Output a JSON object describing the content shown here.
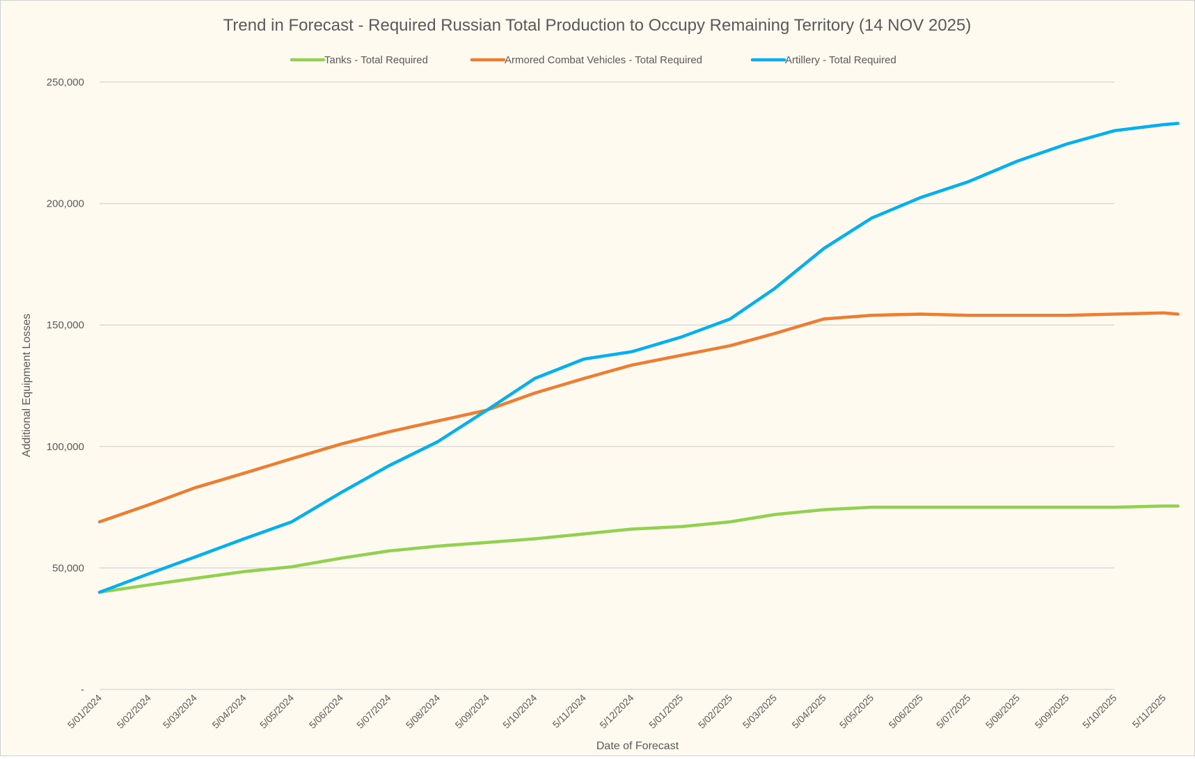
{
  "chart_data": {
    "type": "line",
    "title": "Trend in Forecast - Required Russian Total Production to Occupy Remaining Territory (14 NOV 2025)",
    "xlabel": "Date of Forecast",
    "ylabel": "Additional Equipment Losses",
    "ylim": [
      0,
      250000
    ],
    "yticks": [
      "-",
      "50,000",
      "100,000",
      "150,000",
      "200,000",
      "250,000"
    ],
    "ytick_values": [
      0,
      50000,
      100000,
      150000,
      200000,
      250000
    ],
    "xticks": [
      "5/01/2024",
      "5/02/2024",
      "5/03/2024",
      "5/04/2024",
      "5/05/2024",
      "5/06/2024",
      "5/07/2024",
      "5/08/2024",
      "5/09/2024",
      "5/10/2024",
      "5/11/2024",
      "5/12/2024",
      "5/01/2025",
      "5/02/2025",
      "5/03/2025",
      "5/04/2025",
      "5/05/2025",
      "5/06/2025",
      "5/07/2025",
      "5/08/2025",
      "5/09/2025",
      "5/10/2025",
      "5/11/2025"
    ],
    "grid": "horizontal",
    "legend": "top",
    "x": [
      "5/01/2024",
      "5/02/2024",
      "5/03/2024",
      "5/04/2024",
      "5/05/2024",
      "5/06/2024",
      "5/07/2024",
      "5/08/2024",
      "5/09/2024",
      "5/10/2024",
      "5/11/2024",
      "5/12/2024",
      "5/01/2025",
      "5/02/2025",
      "5/03/2025",
      "5/04/2025",
      "5/05/2025",
      "5/06/2025",
      "5/07/2025",
      "5/08/2025",
      "5/09/2025",
      "5/10/2025",
      "5/11/2025",
      "14/11/2025"
    ],
    "series": [
      {
        "name": "Tanks - Total Required",
        "color": "#92d050",
        "values": [
          40000,
          43000,
          45700,
          48500,
          50500,
          54000,
          57000,
          59000,
          60500,
          62000,
          64000,
          66000,
          67000,
          69000,
          72000,
          74000,
          75000,
          75000,
          75000,
          75000,
          75000,
          75000,
          75500,
          75500
        ]
      },
      {
        "name": "Armored Combat Vehicles - Total Required",
        "color": "#ed7d31",
        "values": [
          69000,
          76000,
          83000,
          89000,
          95000,
          101000,
          106000,
          110500,
          115000,
          122000,
          128000,
          133500,
          137500,
          141500,
          146500,
          152500,
          154000,
          154500,
          154000,
          154000,
          154000,
          154500,
          155000,
          154500
        ]
      },
      {
        "name": "Artillery - Total Required",
        "color": "#00b0f0",
        "values": [
          40000,
          47600,
          54500,
          62000,
          69000,
          81000,
          92000,
          102000,
          115000,
          128000,
          136000,
          139000,
          145000,
          152500,
          165000,
          181500,
          194000,
          202500,
          209000,
          217500,
          224500,
          230000,
          232500,
          233000
        ]
      }
    ]
  }
}
